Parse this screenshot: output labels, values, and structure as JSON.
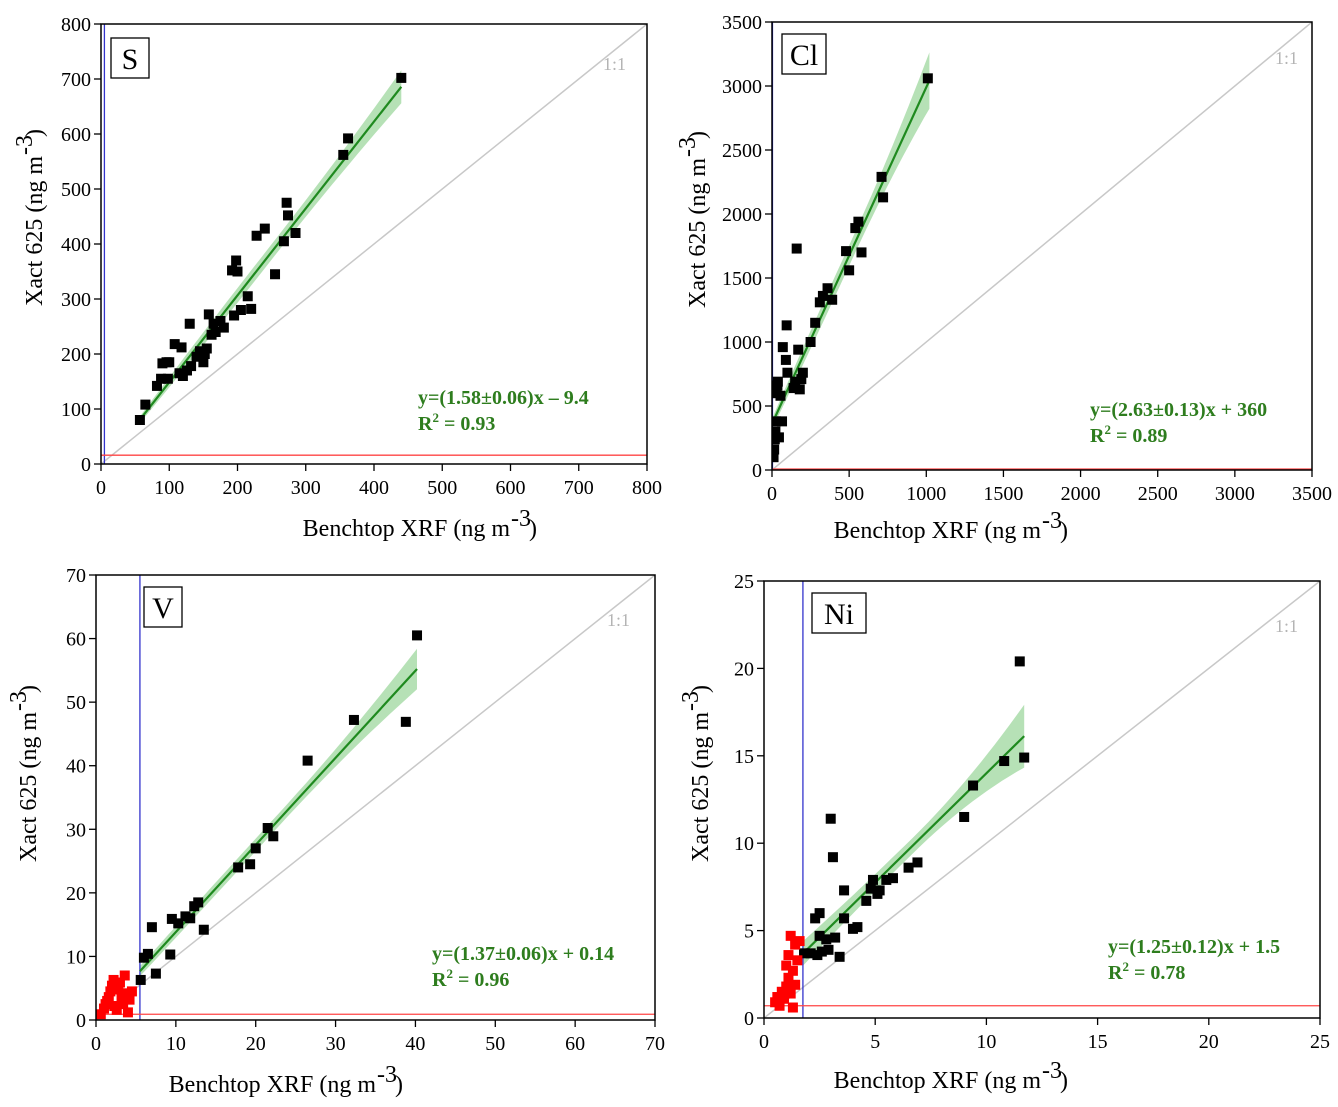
{
  "colors": {
    "fit_line": "#1f8a1f",
    "confidence_band": "#8fd18f",
    "points_main": "#000000",
    "points_low": "#ff0000",
    "detection_limit_x": "#3333cc",
    "detection_limit_y": "#ff4444",
    "one_to_one_line": "#c8c8c8",
    "equation_text": "#2e7d1e"
  },
  "chart_data": [
    {
      "type": "scatter",
      "panel_label": "S",
      "xlabel": "Benchtop XRF (ng m",
      "ylabel": "Xact 625 (ng m",
      "unit_exponent": "-3",
      "xlim": [
        0,
        800
      ],
      "ylim": [
        0,
        800
      ],
      "xticks": [
        0,
        100,
        200,
        300,
        400,
        500,
        600,
        700,
        800
      ],
      "yticks": [
        0,
        100,
        200,
        300,
        400,
        500,
        600,
        700,
        800
      ],
      "one_to_one_label": "1:1",
      "equation": "y=(1.58±0.06)x – 9.4",
      "r2_label": "R",
      "r2_value": " = 0.93",
      "fit": {
        "slope": 1.58,
        "intercept": -9.4,
        "x_range": [
          58,
          440
        ],
        "band": [
          6,
          14,
          30
        ]
      },
      "detection_limit_x": 5,
      "detection_limit_y": 16,
      "points": [
        [
          57,
          80
        ],
        [
          65,
          108
        ],
        [
          82,
          142
        ],
        [
          88,
          155
        ],
        [
          90,
          183
        ],
        [
          96,
          185
        ],
        [
          98,
          155
        ],
        [
          100,
          185
        ],
        [
          108,
          218
        ],
        [
          115,
          165
        ],
        [
          118,
          212
        ],
        [
          120,
          160
        ],
        [
          126,
          170
        ],
        [
          130,
          255
        ],
        [
          132,
          178
        ],
        [
          140,
          195
        ],
        [
          145,
          205
        ],
        [
          150,
          185
        ],
        [
          152,
          200
        ],
        [
          155,
          210
        ],
        [
          158,
          272
        ],
        [
          162,
          235
        ],
        [
          165,
          255
        ],
        [
          168,
          240
        ],
        [
          175,
          260
        ],
        [
          180,
          248
        ],
        [
          192,
          352
        ],
        [
          195,
          270
        ],
        [
          198,
          370
        ],
        [
          200,
          350
        ],
        [
          205,
          280
        ],
        [
          215,
          305
        ],
        [
          220,
          282
        ],
        [
          228,
          415
        ],
        [
          240,
          428
        ],
        [
          255,
          345
        ],
        [
          268,
          405
        ],
        [
          272,
          475
        ],
        [
          274,
          452
        ],
        [
          285,
          420
        ],
        [
          355,
          562
        ],
        [
          362,
          592
        ],
        [
          440,
          702
        ]
      ],
      "low_points": []
    },
    {
      "type": "scatter",
      "panel_label": "Cl",
      "xlabel": "Benchtop XRF (ng m",
      "ylabel": "Xact 625 (ng m",
      "unit_exponent": "-3",
      "xlim": [
        0,
        3500
      ],
      "ylim": [
        0,
        3500
      ],
      "xticks": [
        0,
        500,
        1000,
        1500,
        2000,
        2500,
        3000,
        3500
      ],
      "yticks": [
        0,
        500,
        1000,
        1500,
        2000,
        2500,
        3000,
        3500
      ],
      "one_to_one_label": "1:1",
      "equation": "y=(2.63±0.13)x + 360",
      "r2_label": "R",
      "r2_value": " = 0.89",
      "fit": {
        "slope": 2.63,
        "intercept": 360,
        "x_range": [
          0,
          1020
        ],
        "band": [
          40,
          80,
          220
        ]
      },
      "detection_limit_x": 3,
      "detection_limit_y": 8,
      "points": [
        [
          10,
          100
        ],
        [
          14,
          160
        ],
        [
          18,
          240
        ],
        [
          22,
          300
        ],
        [
          26,
          380
        ],
        [
          30,
          600
        ],
        [
          35,
          660
        ],
        [
          38,
          690
        ],
        [
          45,
          255
        ],
        [
          55,
          580
        ],
        [
          65,
          380
        ],
        [
          70,
          960
        ],
        [
          90,
          860
        ],
        [
          95,
          1130
        ],
        [
          100,
          760
        ],
        [
          140,
          640
        ],
        [
          150,
          690
        ],
        [
          160,
          1730
        ],
        [
          170,
          940
        ],
        [
          180,
          630
        ],
        [
          190,
          710
        ],
        [
          200,
          760
        ],
        [
          250,
          1000
        ],
        [
          280,
          1150
        ],
        [
          310,
          1310
        ],
        [
          330,
          1360
        ],
        [
          360,
          1420
        ],
        [
          390,
          1330
        ],
        [
          480,
          1710
        ],
        [
          500,
          1560
        ],
        [
          540,
          1890
        ],
        [
          560,
          1940
        ],
        [
          580,
          1700
        ],
        [
          710,
          2290
        ],
        [
          720,
          2130
        ],
        [
          1010,
          3060
        ]
      ],
      "low_points": []
    },
    {
      "type": "scatter",
      "panel_label": "V",
      "xlabel": "Benchtop XRF (ng m",
      "ylabel": "Xact 625 (ng m",
      "unit_exponent": "-3",
      "xlim": [
        0,
        70
      ],
      "ylim": [
        0,
        70
      ],
      "xticks": [
        0,
        10,
        20,
        30,
        40,
        50,
        60,
        70
      ],
      "yticks": [
        0,
        10,
        20,
        30,
        40,
        50,
        60,
        70
      ],
      "one_to_one_label": "1:1",
      "equation": "y=(1.37±0.06)x + 0.14",
      "r2_label": "R",
      "r2_value": " = 0.96",
      "fit": {
        "slope": 1.37,
        "intercept": 0.14,
        "x_range": [
          5.5,
          40.2
        ],
        "band": [
          0.8,
          1.0,
          3.2
        ]
      },
      "detection_limit_x": 5.5,
      "detection_limit_y": 0.9,
      "points": [
        [
          5.6,
          6.3
        ],
        [
          6.0,
          9.8
        ],
        [
          6.5,
          10.4
        ],
        [
          7.0,
          14.6
        ],
        [
          7.5,
          7.3
        ],
        [
          9.3,
          10.3
        ],
        [
          9.5,
          15.9
        ],
        [
          10.3,
          15.2
        ],
        [
          11.2,
          16.3
        ],
        [
          11.8,
          16.0
        ],
        [
          12.3,
          17.9
        ],
        [
          12.8,
          18.5
        ],
        [
          13.5,
          14.2
        ],
        [
          17.8,
          24.0
        ],
        [
          19.3,
          24.5
        ],
        [
          20.0,
          27.0
        ],
        [
          21.5,
          30.2
        ],
        [
          22.2,
          28.9
        ],
        [
          26.5,
          40.8
        ],
        [
          32.3,
          47.2
        ],
        [
          38.8,
          46.9
        ],
        [
          40.2,
          60.5
        ]
      ],
      "low_points": [
        [
          0.6,
          0.9
        ],
        [
          1.0,
          1.8
        ],
        [
          1.2,
          2.5
        ],
        [
          1.4,
          3.0
        ],
        [
          1.6,
          3.6
        ],
        [
          1.8,
          4.5
        ],
        [
          2.0,
          5.4
        ],
        [
          2.2,
          6.3
        ],
        [
          2.3,
          2.2
        ],
        [
          2.6,
          1.6
        ],
        [
          2.8,
          4.8
        ],
        [
          3.0,
          5.9
        ],
        [
          3.2,
          3.5
        ],
        [
          3.4,
          2.5
        ],
        [
          3.6,
          7.0
        ],
        [
          3.8,
          4.2
        ],
        [
          4.0,
          1.2
        ],
        [
          4.2,
          3.2
        ],
        [
          4.5,
          4.5
        ]
      ]
    },
    {
      "type": "scatter",
      "panel_label": "Ni",
      "xlabel": "Benchtop XRF (ng m",
      "ylabel": "Xact 625 (ng m",
      "unit_exponent": "-3",
      "xlim": [
        0,
        25
      ],
      "ylim": [
        0,
        25
      ],
      "xticks": [
        0,
        5,
        10,
        15,
        20,
        25
      ],
      "yticks": [
        0,
        5,
        10,
        15,
        20,
        25
      ],
      "one_to_one_label": "1:1",
      "equation": "y=(1.25±0.12)x + 1.5",
      "r2_label": "R",
      "r2_value": " = 0.78",
      "fit": {
        "slope": 1.25,
        "intercept": 1.5,
        "x_range": [
          1.75,
          11.7
        ],
        "band": [
          0.7,
          0.45,
          1.8
        ]
      },
      "detection_limit_x": 1.75,
      "detection_limit_y": 0.7,
      "points": [
        [
          1.8,
          3.7
        ],
        [
          2.1,
          3.7
        ],
        [
          2.3,
          5.7
        ],
        [
          2.4,
          3.6
        ],
        [
          2.5,
          6.0
        ],
        [
          2.5,
          4.7
        ],
        [
          2.6,
          3.8
        ],
        [
          2.8,
          4.5
        ],
        [
          2.9,
          3.9
        ],
        [
          3.0,
          11.4
        ],
        [
          3.1,
          9.2
        ],
        [
          3.2,
          4.6
        ],
        [
          3.4,
          3.5
        ],
        [
          3.6,
          5.7
        ],
        [
          3.6,
          7.3
        ],
        [
          4.0,
          5.1
        ],
        [
          4.2,
          5.2
        ],
        [
          4.6,
          6.7
        ],
        [
          4.8,
          7.4
        ],
        [
          4.9,
          7.9
        ],
        [
          5.1,
          7.1
        ],
        [
          5.2,
          7.3
        ],
        [
          5.5,
          7.9
        ],
        [
          5.8,
          8.0
        ],
        [
          6.5,
          8.6
        ],
        [
          6.9,
          8.9
        ],
        [
          9.0,
          11.5
        ],
        [
          9.4,
          13.3
        ],
        [
          10.8,
          14.7
        ],
        [
          11.5,
          20.4
        ],
        [
          11.7,
          14.9
        ]
      ],
      "low_points": [
        [
          0.5,
          0.9
        ],
        [
          0.6,
          1.2
        ],
        [
          0.7,
          0.7
        ],
        [
          0.8,
          1.5
        ],
        [
          0.9,
          1.1
        ],
        [
          1.0,
          1.8
        ],
        [
          1.0,
          3.0
        ],
        [
          1.1,
          2.3
        ],
        [
          1.1,
          3.6
        ],
        [
          1.2,
          4.7
        ],
        [
          1.2,
          1.4
        ],
        [
          1.3,
          2.7
        ],
        [
          1.3,
          0.6
        ],
        [
          1.4,
          4.2
        ],
        [
          1.4,
          1.9
        ],
        [
          1.5,
          3.3
        ],
        [
          1.6,
          4.4
        ]
      ]
    }
  ]
}
